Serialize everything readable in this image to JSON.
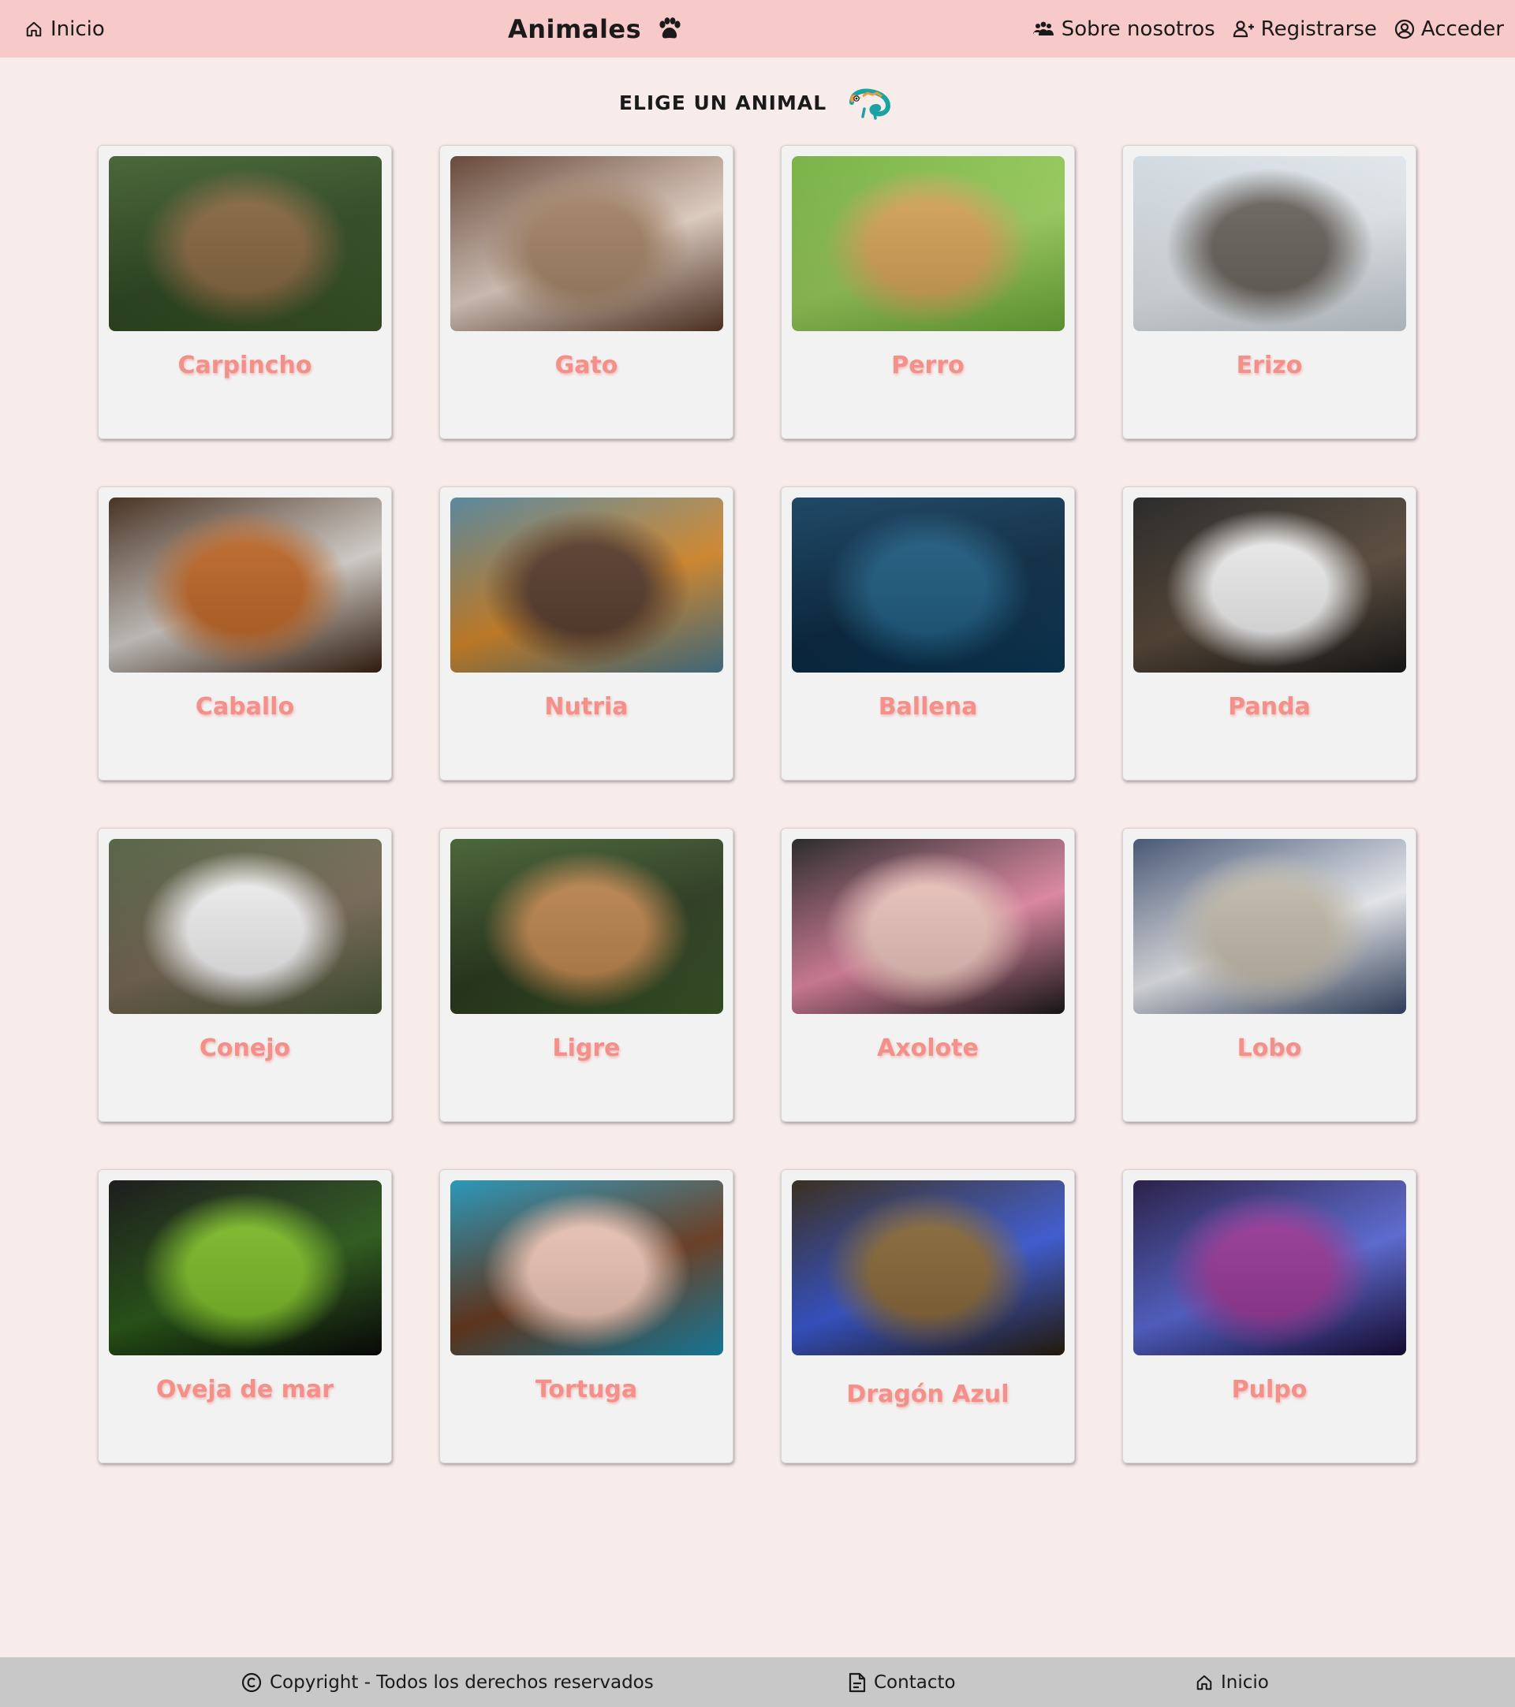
{
  "header": {
    "home_label": "Inicio",
    "brand_title": "Animales",
    "about_label": "Sobre nosotros",
    "register_label": "Registrarse",
    "login_label": "Acceder"
  },
  "main": {
    "heading": "ELIGE UN ANIMAL",
    "animals": [
      {
        "name": "Carpincho",
        "colors": [
          "#3d5a2a",
          "#8a6a43",
          "#2f4a22"
        ]
      },
      {
        "name": "Gato",
        "colors": [
          "#5a3a2a",
          "#a8876a",
          "#e8d5c8"
        ]
      },
      {
        "name": "Perro",
        "colors": [
          "#6fae3a",
          "#d9a75a",
          "#9ccf5c"
        ]
      },
      {
        "name": "Erizo",
        "colors": [
          "#cfd8df",
          "#6d6660",
          "#e6ecf0"
        ]
      },
      {
        "name": "Caballo",
        "colors": [
          "#3a2212",
          "#c26a2a",
          "#d9d4cf"
        ]
      },
      {
        "name": "Nutria",
        "colors": [
          "#4d7e95",
          "#5a3e2e",
          "#d98a2a"
        ]
      },
      {
        "name": "Ballena",
        "colors": [
          "#0d3a5a",
          "#1f5d82",
          "#0a2a44"
        ]
      },
      {
        "name": "Panda",
        "colors": [
          "#1a1a1a",
          "#f2f2f2",
          "#5a4a3a"
        ]
      },
      {
        "name": "Conejo",
        "colors": [
          "#4a5a3a",
          "#f4f4f4",
          "#7a6a58"
        ]
      },
      {
        "name": "Ligre",
        "colors": [
          "#3e5a2a",
          "#c08850",
          "#2a3a1e"
        ]
      },
      {
        "name": "Axolote",
        "colors": [
          "#1a1a1a",
          "#f0c8c0",
          "#e88aa8"
        ]
      },
      {
        "name": "Lobo",
        "colors": [
          "#3a4a6a",
          "#c8c0b0",
          "#f0f2f6"
        ]
      },
      {
        "name": "Oveja de mar",
        "colors": [
          "#0a0a0a",
          "#7fbf2a",
          "#2a5a18"
        ]
      },
      {
        "name": "Tortuga",
        "colors": [
          "#1a8fb5",
          "#f0c8b8",
          "#6a3a1e"
        ]
      },
      {
        "name": "Dragón Azul",
        "colors": [
          "#2a1e0e",
          "#8a6a3a",
          "#3a5ad9"
        ]
      },
      {
        "name": "Pulpo",
        "colors": [
          "#1a0e3a",
          "#9a3a9a",
          "#5a6ad9"
        ]
      }
    ]
  },
  "footer": {
    "copyright": "Copyright - Todos los derechos reservados",
    "contact": "Contacto",
    "home": "Inicio"
  },
  "icons": {
    "home": "home-icon",
    "paw": "paw-icon",
    "users": "users-icon",
    "user_plus": "user-plus-icon",
    "user_circle": "user-circle-icon",
    "chameleon": "chameleon-icon",
    "copyright": "copyright-icon",
    "document": "document-icon"
  }
}
